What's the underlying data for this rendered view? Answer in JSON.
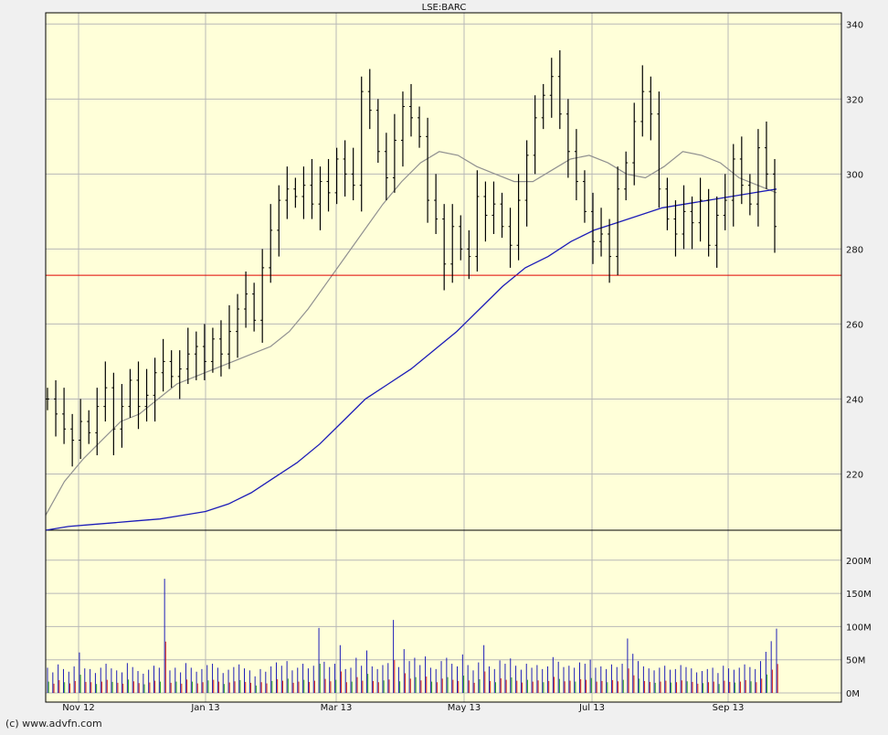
{
  "chart_data": {
    "type": "ohlc_bar_with_volume",
    "title": "LSE:BARC",
    "x_tick_labels": [
      "Nov 12",
      "Jan 13",
      "Mar 13",
      "May 13",
      "Jul 13",
      "Sep 13"
    ],
    "price_panel": {
      "y_ticks": [
        220,
        240,
        260,
        280,
        300,
        320,
        340
      ],
      "ylim": [
        205,
        343
      ],
      "horizontal_line": {
        "value": 273,
        "color": "#e00000"
      },
      "series_close": [
        240,
        236,
        232,
        229,
        234,
        231,
        238,
        243,
        232,
        238,
        245,
        238,
        241,
        247,
        250,
        246,
        248,
        252,
        254,
        250,
        256,
        252,
        258,
        264,
        268,
        261,
        275,
        285,
        293,
        296,
        294,
        297,
        292,
        298,
        295,
        304,
        300,
        297,
        322,
        317,
        306,
        299,
        309,
        318,
        315,
        310,
        293,
        288,
        276,
        286,
        280,
        278,
        294,
        289,
        292,
        286,
        281,
        293,
        305,
        315,
        321,
        326,
        316,
        306,
        298,
        290,
        282,
        284,
        278,
        296,
        303,
        314,
        322,
        316,
        296,
        288,
        284,
        290,
        287,
        293,
        281,
        289,
        293,
        304,
        297,
        292,
        307,
        300,
        286
      ],
      "sma_50": [
        209,
        218,
        224,
        229,
        234,
        236,
        240,
        244,
        246,
        248,
        250,
        252,
        254,
        258,
        264,
        271,
        278,
        285,
        292,
        298,
        303,
        306,
        305,
        302,
        300,
        298,
        298,
        301,
        304,
        305,
        303,
        300,
        299,
        302,
        306,
        305,
        303,
        299,
        297,
        295
      ],
      "sma_200": [
        205,
        206,
        206.5,
        207,
        207.5,
        208,
        209,
        210,
        212,
        215,
        219,
        223,
        228,
        234,
        240,
        244,
        248,
        253,
        258,
        264,
        270,
        275,
        278,
        282,
        285,
        287,
        289,
        291,
        292,
        293,
        294,
        295,
        296
      ],
      "colors": {
        "price_bars": "#000000",
        "sma_50": "#909090",
        "sma_200": "#1c1cb8"
      }
    },
    "volume_panel": {
      "y_ticks": [
        "0M",
        "50M",
        "100M",
        "150M",
        "200M"
      ],
      "ylim_millions": [
        0,
        240
      ],
      "unit": "M",
      "values_millions": [
        38,
        31,
        43,
        36,
        32,
        40,
        61,
        37,
        36,
        30,
        38,
        44,
        37,
        34,
        31,
        45,
        39,
        33,
        29,
        35,
        41,
        38,
        172,
        34,
        38,
        31,
        45,
        38,
        32,
        36,
        42,
        44,
        38,
        30,
        35,
        39,
        43,
        37,
        34,
        25,
        36,
        32,
        40,
        46,
        41,
        48,
        34,
        38,
        44,
        37,
        41,
        98,
        47,
        39,
        44,
        72,
        36,
        38,
        53,
        41,
        64,
        40,
        36,
        42,
        45,
        110,
        39,
        66,
        48,
        53,
        42,
        55,
        38,
        36,
        48,
        53,
        44,
        40,
        58,
        42,
        34,
        46,
        72,
        40,
        36,
        49,
        44,
        52,
        41,
        35,
        44,
        38,
        42,
        36,
        40,
        54,
        47,
        39,
        41,
        38,
        46,
        44,
        50,
        38,
        40,
        36,
        43,
        39,
        44,
        82,
        59,
        48,
        40,
        37,
        34,
        38,
        41,
        35,
        36,
        42,
        39,
        37,
        31,
        33,
        36,
        38,
        30,
        41,
        37,
        35,
        38,
        43,
        39,
        36,
        48,
        62,
        78,
        97
      ],
      "colors": {
        "bar_down": "#d11f1f",
        "bar_up": "#2a9d2a",
        "bar_total": "#1c1cb8"
      }
    },
    "colors": {
      "plot_background": "#ffffd9",
      "grid": "#b8b8b8",
      "page_background": "#f0f0f0"
    }
  },
  "footer": {
    "copyright": "(c) www.advfn.com"
  }
}
